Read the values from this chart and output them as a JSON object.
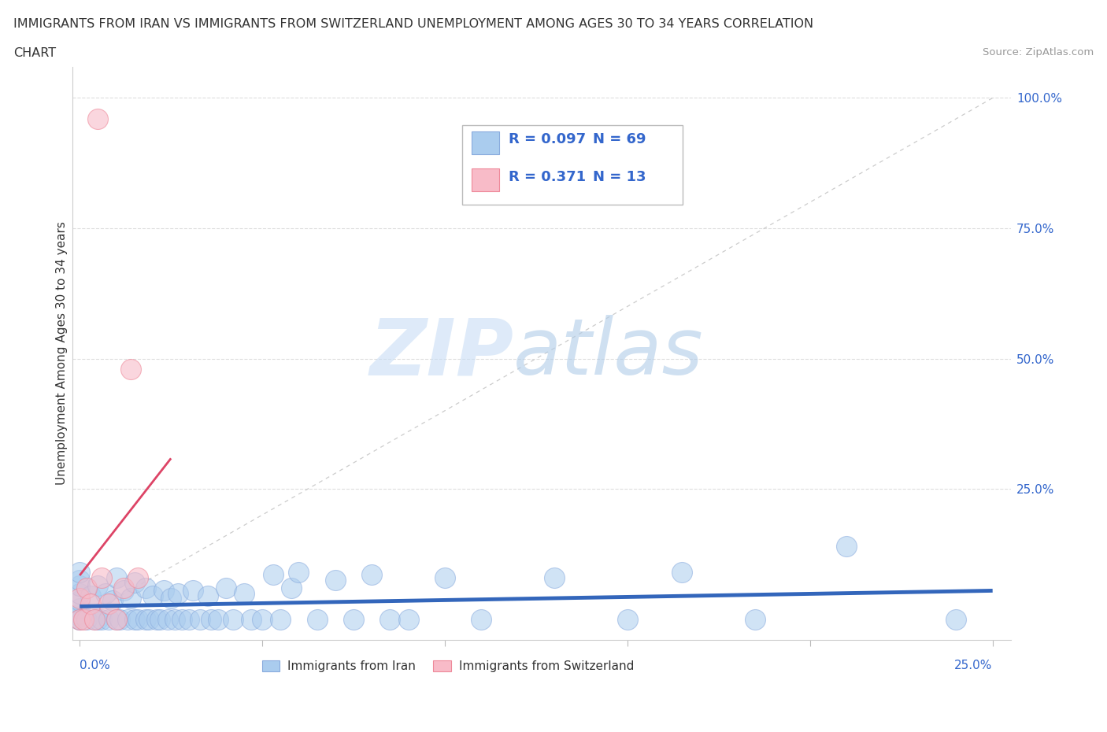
{
  "title_line1": "IMMIGRANTS FROM IRAN VS IMMIGRANTS FROM SWITZERLAND UNEMPLOYMENT AMONG AGES 30 TO 34 YEARS CORRELATION",
  "title_line2": "CHART",
  "source": "Source: ZipAtlas.com",
  "ylabel": "Unemployment Among Ages 30 to 34 years",
  "iran_color": "#aaccee",
  "iran_edge_color": "#88aadd",
  "switzerland_color": "#f8bbc8",
  "switzerland_edge_color": "#ee8899",
  "trend_iran_color": "#3366bb",
  "trend_switzerland_color": "#dd4466",
  "ref_line_color": "#cccccc",
  "legend_iran_label": "Immigrants from Iran",
  "legend_switzerland_label": "Immigrants from Switzerland",
  "r_iran": "0.097",
  "n_iran": "69",
  "r_switzerland": "0.371",
  "n_switzerland": "13",
  "watermark_zip": "ZIP",
  "watermark_atlas": "atlas",
  "axis_label_color": "#3366cc",
  "grid_color": "#dddddd",
  "legend_text_color": "#222244"
}
